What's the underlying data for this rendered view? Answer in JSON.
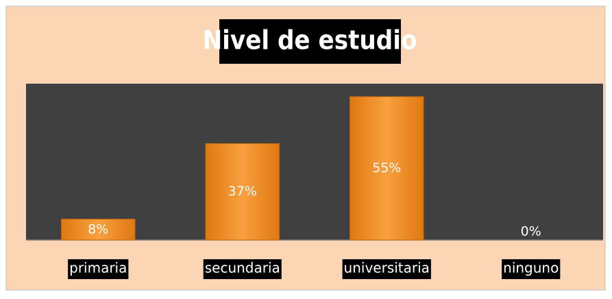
{
  "chart_data": {
    "type": "bar",
    "title": "Nivel de estudio",
    "categories": [
      "primaria",
      "secundaria",
      "universitaria",
      "ninguno"
    ],
    "values": [
      8,
      37,
      55,
      0
    ],
    "value_labels": [
      "8%",
      "37%",
      "55%",
      "0%"
    ],
    "color": "#f7941d",
    "ylim": [
      0,
      60
    ]
  }
}
